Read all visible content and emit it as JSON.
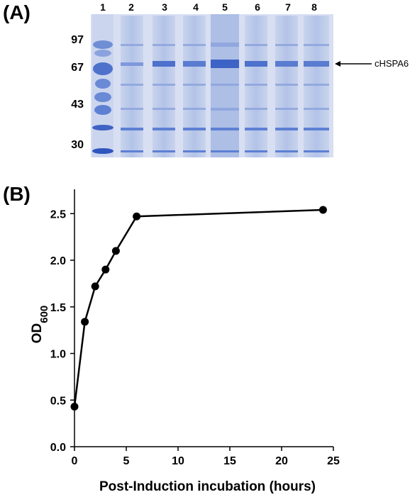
{
  "panel_a": {
    "label": "(A)",
    "lanes": [
      "1",
      "2",
      "3",
      "4",
      "5",
      "6",
      "7",
      "8"
    ],
    "mw_markers": [
      "97",
      "67",
      "43",
      "30"
    ],
    "protein_label": "cHSPA6"
  },
  "panel_b": {
    "label": "(B)"
  },
  "chart_data": {
    "type": "line",
    "title": "",
    "xlabel": "Post-Induction incubation (hours)",
    "ylabel": "OD600",
    "ylabel_main": "OD",
    "ylabel_sub": "600",
    "xlim": [
      0,
      25
    ],
    "ylim": [
      0,
      2.7
    ],
    "xticks": [
      "0",
      "5",
      "10",
      "15",
      "20",
      "25"
    ],
    "yticks": [
      "0.0",
      "0.5",
      "1.0",
      "1.5",
      "2.0",
      "2.5"
    ],
    "grid": false,
    "x": [
      0,
      1,
      2,
      3,
      4,
      6,
      24
    ],
    "y": [
      0.43,
      1.34,
      1.72,
      1.9,
      2.1,
      2.47,
      2.54
    ],
    "color": "#000000"
  }
}
